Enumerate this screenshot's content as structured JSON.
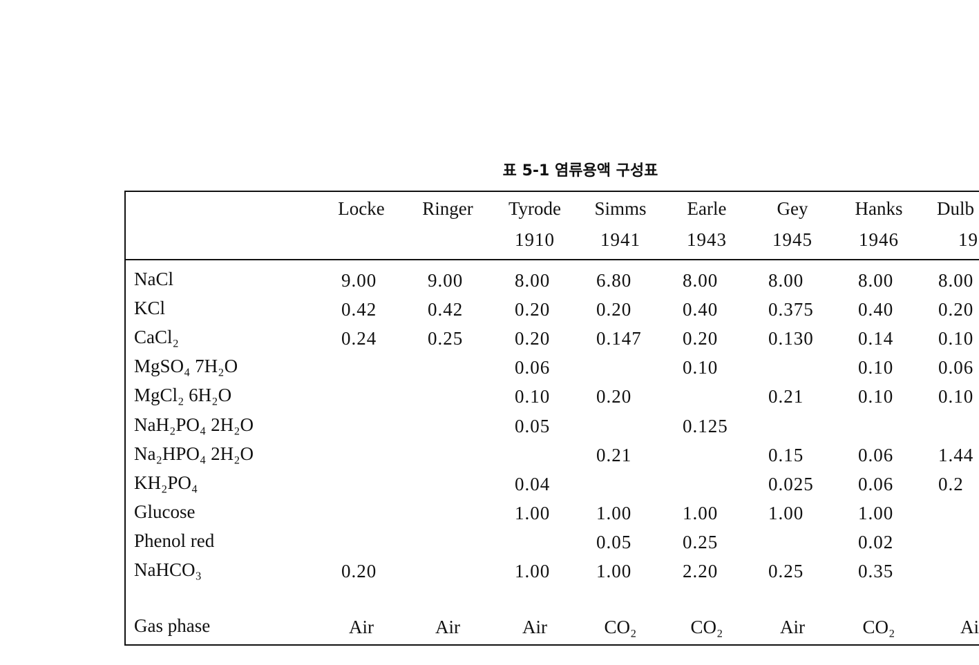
{
  "title": "표 5-1 염류용액 구성표",
  "table": {
    "columns": [
      "Locke",
      "Ringer",
      "Tyrode",
      "Simms",
      "Earle",
      "Gey",
      "Hanks",
      "Dulb"
    ],
    "years": [
      null,
      null,
      "1910",
      "1941",
      "1943",
      "1945",
      "1946",
      "19"
    ],
    "rows": [
      [
        "NaCl",
        "9.00",
        "9.00",
        "8.00",
        "6.80",
        "8.00",
        "8.00",
        "8.00",
        "8.00"
      ],
      [
        "KCl",
        "0.42",
        "0.42",
        "0.20",
        "0.20",
        "0.40",
        "0.375",
        "0.40",
        "0.20"
      ],
      [
        "CaCl₂",
        "0.24",
        "0.25",
        "0.20",
        "0.147",
        "0.20",
        "0.130",
        "0.14",
        "0.10"
      ],
      [
        "MgSO₄ 7H₂O",
        null,
        null,
        "0.06",
        null,
        "0.10",
        null,
        "0.10",
        "0.06"
      ],
      [
        "MgCl₂ 6H₂O",
        null,
        null,
        "0.10",
        "0.20",
        null,
        "0.21",
        "0.10",
        "0.10"
      ],
      [
        "NaH₂PO₄ 2H₂O",
        null,
        null,
        "0.05",
        null,
        "0.125",
        null,
        null,
        null
      ],
      [
        "Na₂HPO₄ 2H₂O",
        null,
        null,
        null,
        "0.21",
        null,
        "0.15",
        "0.06",
        "1.44"
      ],
      [
        "KH₂PO₄",
        null,
        null,
        "0.04",
        null,
        null,
        "0.025",
        "0.06",
        "0.2"
      ],
      [
        "Glucose",
        null,
        null,
        "1.00",
        "1.00",
        "1.00",
        "1.00",
        "1.00",
        null
      ],
      [
        "Phenol red",
        null,
        null,
        null,
        "0.05",
        "0.25",
        null,
        "0.02",
        null
      ],
      [
        "NaHCO₃",
        "0.20",
        null,
        "1.00",
        "1.00",
        "2.20",
        "0.25",
        "0.35",
        null
      ]
    ],
    "gas_row": [
      "Gas phase",
      "Air",
      "Air",
      "Air",
      "CO₂",
      "CO₂",
      "Air",
      "CO₂",
      "Ai"
    ]
  }
}
